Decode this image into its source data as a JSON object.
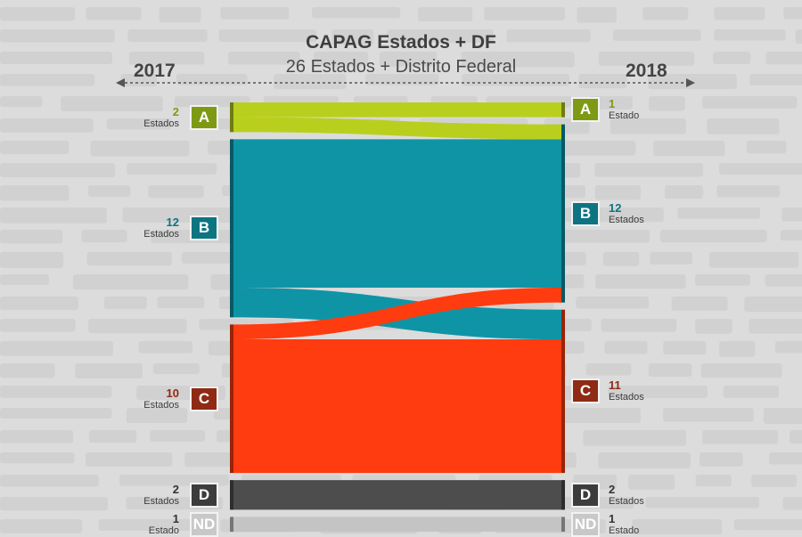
{
  "title": "CAPAG Estados + DF",
  "subtitle": "26 Estados + Distrito Federal",
  "year_left": "2017",
  "year_right": "2018",
  "colors": {
    "A": "#b9cf1e",
    "B": "#0f94a6",
    "C": "#ff3c0f",
    "D": "#4d4d4d",
    "ND": "#c4c4c4",
    "badge_A": "#7e9a14",
    "badge_B": "#0d7482",
    "badge_C": "#8f2a14",
    "badge_D": "#3c3c3c",
    "badge_ND": "#c8c8c8",
    "num_A": "#7e9a14",
    "num_B": "#0d7482",
    "num_C": "#8f2a14",
    "num_D": "#333333",
    "num_ND": "#333333"
  },
  "chart_data": {
    "type": "sankey",
    "title": "CAPAG Estados + DF",
    "subtitle": "26 Estados + Distrito Federal",
    "left_label": "2017",
    "right_label": "2018",
    "nodes_left": [
      {
        "id": "A",
        "label": "A",
        "value": 2,
        "num": "2",
        "unit": "Estados"
      },
      {
        "id": "B",
        "label": "B",
        "value": 12,
        "num": "12",
        "unit": "Estados"
      },
      {
        "id": "C",
        "label": "C",
        "value": 10,
        "num": "10",
        "unit": "Estados"
      },
      {
        "id": "D",
        "label": "D",
        "value": 2,
        "num": "2",
        "unit": "Estados"
      },
      {
        "id": "ND",
        "label": "ND",
        "value": 1,
        "num": "1",
        "unit": "Estado"
      }
    ],
    "nodes_right": [
      {
        "id": "A",
        "label": "A",
        "value": 1,
        "num": "1",
        "unit": "Estado"
      },
      {
        "id": "B",
        "label": "B",
        "value": 12,
        "num": "12",
        "unit": "Estados"
      },
      {
        "id": "C",
        "label": "C",
        "value": 11,
        "num": "11",
        "unit": "Estados"
      },
      {
        "id": "D",
        "label": "D",
        "value": 2,
        "num": "2",
        "unit": "Estados"
      },
      {
        "id": "ND",
        "label": "ND",
        "value": 1,
        "num": "1",
        "unit": "Estado"
      }
    ],
    "flows": [
      {
        "from": "A",
        "to": "A",
        "value": 1
      },
      {
        "from": "A",
        "to": "B",
        "value": 1
      },
      {
        "from": "B",
        "to": "B",
        "value": 10
      },
      {
        "from": "B",
        "to": "C",
        "value": 2
      },
      {
        "from": "C",
        "to": "B",
        "value": 1
      },
      {
        "from": "C",
        "to": "C",
        "value": 9
      },
      {
        "from": "D",
        "to": "D",
        "value": 2
      },
      {
        "from": "ND",
        "to": "ND",
        "value": 1
      }
    ]
  }
}
